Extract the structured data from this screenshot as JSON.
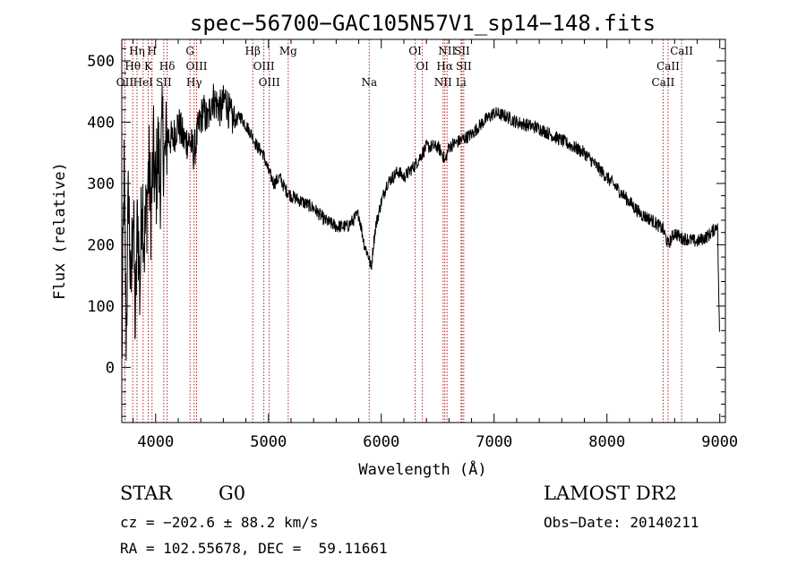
{
  "chart_data": {
    "type": "line",
    "title": "spec−56700−GAC105N57V1_sp14−148.fits",
    "xlabel": "Wavelength (Å)",
    "ylabel": "Flux (relative)",
    "xlim": [
      3700,
      9050
    ],
    "ylim": [
      -90,
      535
    ],
    "x_ticks": [
      4000,
      5000,
      6000,
      7000,
      8000,
      9000
    ],
    "y_ticks": [
      0,
      100,
      200,
      300,
      400,
      500
    ],
    "grid": false,
    "series": [
      {
        "x": [
          3700,
          3720,
          3740,
          3760,
          3780,
          3800,
          3820,
          3840,
          3860,
          3880,
          3900,
          3920,
          3940,
          3960,
          3980,
          4000,
          4020,
          4040,
          4060,
          4080,
          4100,
          4150,
          4200,
          4250,
          4300,
          4340,
          4380,
          4420,
          4460,
          4500,
          4540,
          4580,
          4620,
          4660,
          4700,
          4750,
          4800,
          4850,
          4900,
          4950,
          5000,
          5050,
          5100,
          5150,
          5200,
          5300,
          5400,
          5500,
          5600,
          5700,
          5800,
          5850,
          5890,
          5910,
          5930,
          5950,
          6000,
          6050,
          6100,
          6150,
          6200,
          6300,
          6400,
          6500,
          6550,
          6563,
          6600,
          6650,
          6700,
          6750,
          6800,
          6900,
          7000,
          7100,
          7200,
          7300,
          7400,
          7500,
          7600,
          7700,
          7800,
          7900,
          8000,
          8100,
          8200,
          8300,
          8400,
          8498,
          8542,
          8600,
          8662,
          8700,
          8800,
          8900,
          8950,
          8980,
          9000
        ],
        "y": [
          0,
          320,
          50,
          300,
          100,
          280,
          60,
          260,
          120,
          300,
          200,
          260,
          330,
          250,
          350,
          280,
          360,
          300,
          390,
          330,
          380,
          370,
          400,
          370,
          370,
          350,
          390,
          420,
          400,
          440,
          430,
          420,
          440,
          410,
          400,
          410,
          395,
          380,
          360,
          350,
          320,
          300,
          310,
          290,
          280,
          270,
          260,
          240,
          230,
          230,
          250,
          200,
          180,
          160,
          200,
          230,
          270,
          300,
          310,
          320,
          310,
          330,
          360,
          360,
          345,
          335,
          360,
          365,
          370,
          375,
          380,
          400,
          415,
          410,
          400,
          395,
          390,
          380,
          370,
          360,
          350,
          330,
          310,
          290,
          270,
          250,
          240,
          225,
          200,
          220,
          210,
          210,
          205,
          215,
          225,
          235,
          30
        ]
      }
    ],
    "lines": [
      {
        "label": "Hη",
        "x": 3835,
        "row": 0
      },
      {
        "label": "H",
        "x": 3968,
        "row": 0
      },
      {
        "label": "Hθ",
        "x": 3797,
        "row": 1
      },
      {
        "label": "K",
        "x": 3934,
        "row": 1
      },
      {
        "label": "Hδ",
        "x": 4102,
        "row": 1
      },
      {
        "label": "OII",
        "x": 3727,
        "row": 2
      },
      {
        "label": "HeI",
        "x": 3889,
        "row": 2
      },
      {
        "label": "SII",
        "x": 4072,
        "row": 2
      },
      {
        "label": "G",
        "x": 4305,
        "row": 0
      },
      {
        "label": "OIII",
        "x": 4363,
        "row": 1
      },
      {
        "label": "Hγ",
        "x": 4341,
        "row": 2
      },
      {
        "label": "Hβ",
        "x": 4861,
        "row": 0
      },
      {
        "label": "OIII",
        "x": 4959,
        "row": 1
      },
      {
        "label": "OIII",
        "x": 5007,
        "row": 2
      },
      {
        "label": "Mg",
        "x": 5175,
        "row": 0
      },
      {
        "label": "Na",
        "x": 5893,
        "row": 2
      },
      {
        "label": "OI",
        "x": 6300,
        "row": 0
      },
      {
        "label": "OI",
        "x": 6364,
        "row": 1
      },
      {
        "label": "NII",
        "x": 6583,
        "row": 0
      },
      {
        "label": "SII",
        "x": 6716,
        "row": 0
      },
      {
        "label": "Hα",
        "x": 6563,
        "row": 1
      },
      {
        "label": "SII",
        "x": 6731,
        "row": 1
      },
      {
        "label": "NII",
        "x": 6548,
        "row": 2
      },
      {
        "label": "Li",
        "x": 6707,
        "row": 2
      },
      {
        "label": "CaII",
        "x": 8662,
        "row": 0
      },
      {
        "label": "CaII",
        "x": 8542,
        "row": 1
      },
      {
        "label": "CaII",
        "x": 8498,
        "row": 2
      }
    ]
  },
  "info": {
    "object_type": "STAR",
    "subclass": "G0",
    "cz": "cz = −202.6 ± 88.2 km/s",
    "coords": "RA = 102.55678, DEC =  59.11661",
    "survey": "LAMOST DR2",
    "obs_date": "Obs−Date: 20140211"
  }
}
